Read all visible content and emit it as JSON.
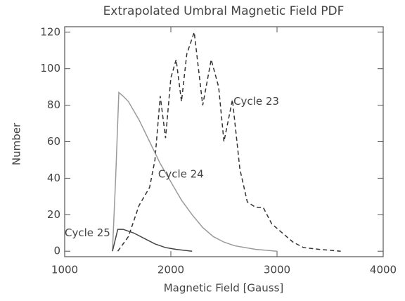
{
  "chart_data": {
    "type": "line",
    "title": "Extrapolated Umbral Magnetic Field PDF",
    "x_label": "Magnetic Field [Gauss]",
    "y_label": "Number",
    "xlim": [
      1000,
      4000
    ],
    "ylim": [
      -3,
      123
    ],
    "xticks": [
      1000,
      2000,
      3000,
      4000
    ],
    "yticks": [
      0,
      20,
      40,
      60,
      80,
      100,
      120
    ],
    "annotations": [
      "Cycle 23",
      "Cycle 24",
      "Cycle 25"
    ],
    "series": [
      {
        "name": "Cycle 23",
        "color": "#333333",
        "dashed": true,
        "x": [
          1500,
          1600,
          1700,
          1800,
          1850,
          1900,
          1950,
          2000,
          2050,
          2100,
          2150,
          2220,
          2300,
          2380,
          2450,
          2500,
          2580,
          2650,
          2720,
          2800,
          2870,
          2950,
          3050,
          3150,
          3250,
          3400,
          3600
        ],
        "values": [
          0,
          8,
          25,
          35,
          50,
          85,
          62,
          95,
          105,
          82,
          108,
          120,
          80,
          105,
          90,
          60,
          83,
          45,
          27,
          24,
          24,
          15,
          10,
          5,
          2,
          1,
          0
        ]
      },
      {
        "name": "Cycle 24",
        "color": "#9a9a9a",
        "dashed": false,
        "x": [
          1450,
          1480,
          1510,
          1550,
          1600,
          1700,
          1800,
          1900,
          2000,
          2100,
          2200,
          2300,
          2400,
          2500,
          2600,
          2800,
          3000
        ],
        "values": [
          0,
          40,
          87,
          85,
          82,
          72,
          60,
          48,
          38,
          28,
          20,
          13,
          8,
          5,
          3,
          1,
          0
        ]
      },
      {
        "name": "Cycle 25",
        "color": "#444444",
        "dashed": false,
        "x": [
          1450,
          1500,
          1550,
          1650,
          1750,
          1850,
          1950,
          2050,
          2200
        ],
        "values": [
          0,
          12,
          12,
          10,
          7,
          4,
          2,
          1,
          0
        ]
      }
    ]
  }
}
